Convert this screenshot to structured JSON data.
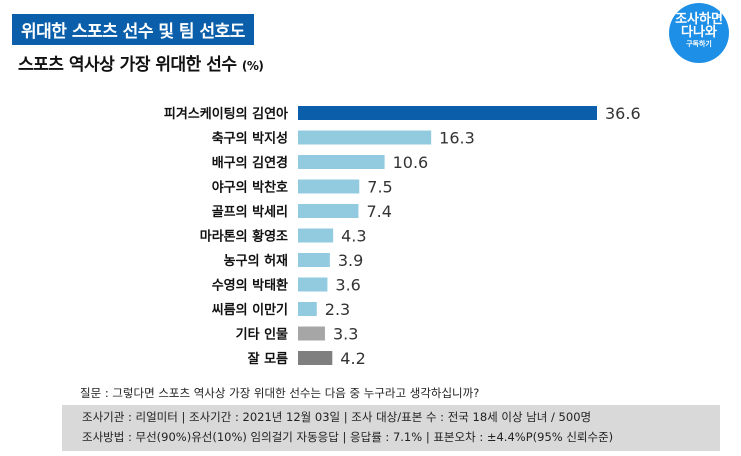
{
  "header": {
    "title": "위대한 스포츠 선수 및 팀 선호도",
    "subtitle": "스포츠 역사상 가장 위대한 선수",
    "unit": "(%)",
    "logo_text": "조사하면 다나와",
    "logo_sub": "구독하기"
  },
  "chart_data": {
    "type": "bar",
    "orientation": "horizontal",
    "title": "스포츠 역사상 가장 위대한 선수 (%)",
    "categories": [
      "피겨스케이팅의 김연아",
      "축구의 박지성",
      "배구의 김연경",
      "야구의 박찬호",
      "골프의 박세리",
      "마라톤의 황영조",
      "농구의 허재",
      "수영의 박태환",
      "씨름의 이만기",
      "기타 인물",
      "잘 모름"
    ],
    "values": [
      36.6,
      16.3,
      10.6,
      7.5,
      7.4,
      4.3,
      3.9,
      3.6,
      2.3,
      3.3,
      4.2
    ],
    "colors": [
      "#0a5eaa",
      "#92cbe0",
      "#92cbe0",
      "#92cbe0",
      "#92cbe0",
      "#92cbe0",
      "#92cbe0",
      "#92cbe0",
      "#92cbe0",
      "#a6a6a6",
      "#7f7f7f"
    ],
    "grid": false,
    "legend": "none"
  },
  "footer": {
    "question": "질문 : 그렇다면 스포츠 역사상 가장 위대한 선수는 다음 중 누구라고 생각하십니까?",
    "line1": "조사기관 : 리얼미터  |  조사기간 : 2021년 12월 03일  |  조사 대상/표본 수 : 전국 18세 이상 남녀 / 500명",
    "line2": "조사방법 : 무선(90%)유선(10%) 임의걸기 자동응답  |  응답률 : 7.1%  |  표본오차 : ±4.4%P(95% 신뢰수준)"
  }
}
